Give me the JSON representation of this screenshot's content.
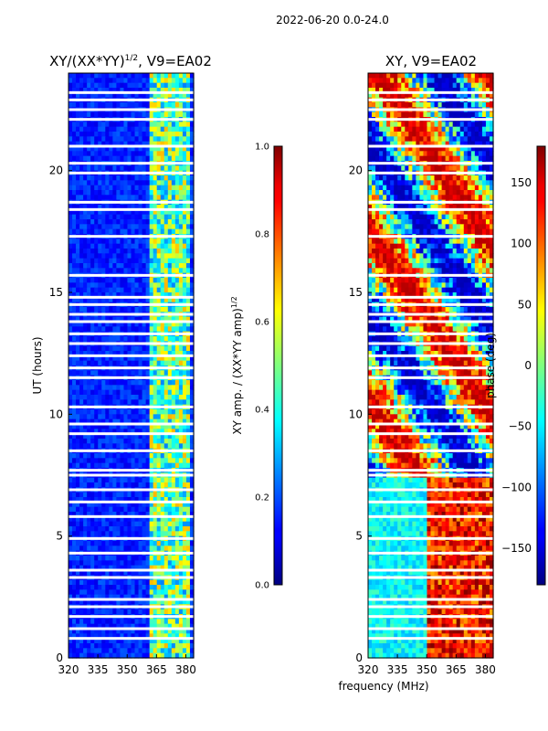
{
  "figure_title": "2022-06-20 0.0-24.0",
  "xlabel": "frequency (MHz)",
  "chart_data": [
    {
      "type": "heatmap",
      "title_main": "XY/(XX*YY)",
      "title_sup": "1/2",
      "title_tail": ", V9=EA02",
      "ylabel": "UT (hours)",
      "xlim": [
        320,
        384
      ],
      "ylim": [
        0,
        24
      ],
      "xticks": [
        320,
        335,
        350,
        365,
        380
      ],
      "yticks": [
        0,
        5,
        10,
        15,
        20
      ],
      "colorbar": {
        "label_main": "XY amp. / (XX*YY amp)",
        "label_sup": "1/2",
        "range": [
          0.0,
          1.0
        ],
        "ticks": [
          "0.0",
          "0.2",
          "0.4",
          "0.6",
          "0.8",
          "1.0"
        ],
        "colormap": "jet"
      },
      "high_amplitude_band_MHz": [
        362,
        382
      ],
      "background_level": 0.1
    },
    {
      "type": "heatmap",
      "title_main": "XY, V9=EA02",
      "ylabel": "phase (deg)",
      "xlim": [
        320,
        384
      ],
      "ylim": [
        0,
        24
      ],
      "xticks": [
        320,
        335,
        350,
        365,
        380
      ],
      "yticks": [
        0,
        5,
        10,
        15,
        20
      ],
      "colorbar": {
        "range": [
          -180,
          180
        ],
        "ticks": [
          "150",
          "100",
          "50",
          "0",
          "−50",
          "−100",
          "−150"
        ],
        "tick_values": [
          150,
          100,
          50,
          0,
          -50,
          -100,
          -150
        ],
        "colormap": "jet"
      }
    }
  ],
  "data_gaps_UT_hours": [
    0.8,
    1.2,
    1.7,
    2.1,
    2.4,
    3.3,
    3.6,
    4.3,
    4.9,
    5.8,
    6.4,
    6.9,
    7.5,
    7.7,
    8.5,
    9.2,
    9.6,
    10.3,
    11.5,
    11.9,
    12.4,
    12.9,
    13.3,
    13.8,
    14.1,
    14.5,
    14.8,
    15.7,
    17.3,
    18.4,
    18.7,
    19.9,
    20.3,
    21.0,
    22.1,
    22.5,
    22.9,
    23.2
  ]
}
